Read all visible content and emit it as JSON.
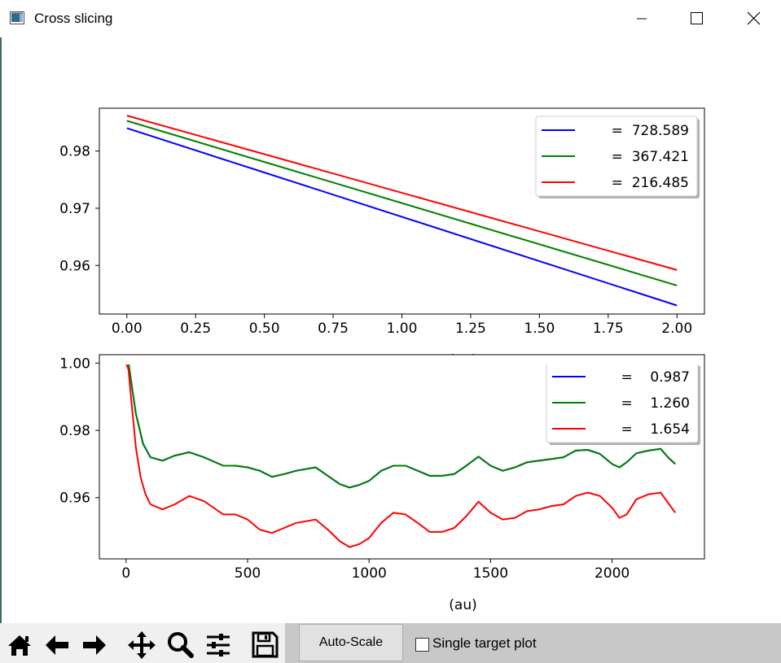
{
  "window": {
    "title": "Cross slicing",
    "controls": [
      "minimize-icon",
      "maximize-icon",
      "close-icon"
    ]
  },
  "toolbar": {
    "icons": [
      "home-icon",
      "back-arrow-icon",
      "forward-arrow-icon",
      "pan-icon",
      "zoom-icon",
      "configure-subplots-icon",
      "save-icon"
    ],
    "autoscale_label": "Auto-Scale",
    "single_target_label": "Single target plot",
    "single_target_checked": false
  },
  "colors": {
    "blue": "#0000ff",
    "green": "#008000",
    "red": "#ff0000"
  },
  "chart_data": [
    {
      "type": "line",
      "xlabel": "(au)",
      "xlim": [
        -0.1,
        2.1
      ],
      "ylim": [
        0.9515,
        0.9875
      ],
      "xticks": [
        "0.00",
        "0.25",
        "0.50",
        "0.75",
        "1.00",
        "1.25",
        "1.50",
        "1.75",
        "2.00"
      ],
      "yticks": [
        "0.96",
        "0.97",
        "0.98"
      ],
      "legend_position": "top-right",
      "series": [
        {
          "name": "=  728.589",
          "color": "#0000ff",
          "x": [
            0,
            2
          ],
          "y": [
            0.984,
            0.953
          ]
        },
        {
          "name": "=  367.421",
          "color": "#008000",
          "x": [
            0,
            2
          ],
          "y": [
            0.9853,
            0.9565
          ]
        },
        {
          "name": "=  216.485",
          "color": "#ff0000",
          "x": [
            0,
            2
          ],
          "y": [
            0.9862,
            0.9592
          ]
        }
      ]
    },
    {
      "type": "line",
      "xlabel": "(au)",
      "xlim": [
        -110,
        2380
      ],
      "ylim": [
        0.9418,
        1.0025
      ],
      "xticks": [
        "0",
        "500",
        "1000",
        "1500",
        "2000"
      ],
      "yticks": [
        "0.96",
        "0.98",
        "1.00"
      ],
      "legend_position": "top-right",
      "series": [
        {
          "name": "=    0.987",
          "color": "#0000ff",
          "x": [
            0,
            10,
            20,
            40,
            70,
            100,
            150,
            200,
            260,
            320,
            400,
            450,
            500,
            550,
            600,
            650,
            700,
            780,
            830,
            880,
            920,
            960,
            1000,
            1050,
            1100,
            1150,
            1200,
            1250,
            1300,
            1350,
            1400,
            1450,
            1500,
            1550,
            1600,
            1650,
            1700,
            1750,
            1800,
            1850,
            1900,
            1950,
            2000,
            2030,
            2060,
            2100,
            2150,
            2200,
            2230,
            2260
          ],
          "y": [
            1.0,
            1.0,
            0.995,
            0.985,
            0.976,
            0.972,
            0.971,
            0.9725,
            0.9735,
            0.972,
            0.9695,
            0.9695,
            0.969,
            0.968,
            0.9662,
            0.967,
            0.968,
            0.969,
            0.9665,
            0.964,
            0.963,
            0.9638,
            0.965,
            0.968,
            0.9695,
            0.9695,
            0.968,
            0.9665,
            0.9665,
            0.967,
            0.9695,
            0.9722,
            0.9695,
            0.968,
            0.969,
            0.9705,
            0.971,
            0.9715,
            0.972,
            0.974,
            0.9742,
            0.973,
            0.97,
            0.969,
            0.9705,
            0.9732,
            0.974,
            0.9745,
            0.972,
            0.97
          ]
        },
        {
          "name": "=    1.260",
          "color": "#008000",
          "x": [
            0,
            10,
            20,
            40,
            70,
            100,
            150,
            200,
            260,
            320,
            400,
            450,
            500,
            550,
            600,
            650,
            700,
            780,
            830,
            880,
            920,
            960,
            1000,
            1050,
            1100,
            1150,
            1200,
            1250,
            1300,
            1350,
            1400,
            1450,
            1500,
            1550,
            1600,
            1650,
            1700,
            1750,
            1800,
            1850,
            1900,
            1950,
            2000,
            2030,
            2060,
            2100,
            2150,
            2200,
            2230,
            2260
          ],
          "y": [
            1.0,
            1.0,
            0.995,
            0.985,
            0.976,
            0.972,
            0.971,
            0.9725,
            0.9735,
            0.972,
            0.9695,
            0.9695,
            0.969,
            0.968,
            0.9662,
            0.967,
            0.968,
            0.969,
            0.9665,
            0.964,
            0.963,
            0.9638,
            0.965,
            0.968,
            0.9695,
            0.9695,
            0.968,
            0.9665,
            0.9665,
            0.967,
            0.9695,
            0.9722,
            0.9695,
            0.968,
            0.969,
            0.9705,
            0.971,
            0.9715,
            0.972,
            0.974,
            0.9742,
            0.973,
            0.97,
            0.969,
            0.9705,
            0.9732,
            0.974,
            0.9745,
            0.972,
            0.97
          ]
        },
        {
          "name": "=    1.654",
          "color": "#ff0000",
          "x": [
            0,
            10,
            20,
            40,
            60,
            80,
            100,
            150,
            200,
            260,
            320,
            400,
            450,
            500,
            550,
            600,
            650,
            700,
            780,
            830,
            880,
            920,
            960,
            1000,
            1050,
            1100,
            1150,
            1200,
            1250,
            1300,
            1350,
            1400,
            1450,
            1500,
            1550,
            1600,
            1650,
            1700,
            1750,
            1800,
            1850,
            1900,
            1950,
            2000,
            2030,
            2060,
            2100,
            2150,
            2200,
            2230,
            2260
          ],
          "y": [
            1.0,
            0.998,
            0.99,
            0.975,
            0.966,
            0.961,
            0.958,
            0.9565,
            0.958,
            0.9605,
            0.959,
            0.955,
            0.955,
            0.9535,
            0.9505,
            0.9495,
            0.951,
            0.9525,
            0.9535,
            0.9505,
            0.947,
            0.9453,
            0.9462,
            0.948,
            0.9525,
            0.9555,
            0.955,
            0.9525,
            0.9498,
            0.9498,
            0.951,
            0.9545,
            0.9588,
            0.9555,
            0.9535,
            0.954,
            0.956,
            0.9565,
            0.9575,
            0.958,
            0.9605,
            0.9615,
            0.9605,
            0.957,
            0.954,
            0.955,
            0.9595,
            0.961,
            0.9615,
            0.9585,
            0.9555
          ]
        }
      ]
    }
  ]
}
